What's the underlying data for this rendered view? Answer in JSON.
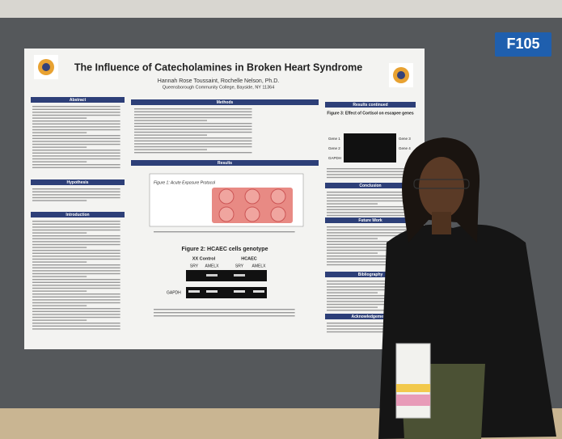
{
  "sign": "F105",
  "poster": {
    "title": "The Influence of Catecholamines in Broken Heart Syndrome",
    "authors": "Hannah Rose Toussaint, Rochelle Nelson, Ph.D.",
    "affiliation": "Queensborough Community College, Bayside, NY 11364",
    "sections": [
      "Abstract",
      "Hypothesis",
      "Introduction",
      "Methods",
      "Results",
      "Results continued",
      "Conclusion",
      "Future Work",
      "Bibliography",
      "Acknowledgements"
    ],
    "figure1": {
      "title": "Figure 1: Acute Exposure Protocol"
    },
    "figure2": {
      "title": "Figure 2: HCAEC cells genotype",
      "groups": [
        "XX Control",
        "HCAEC"
      ],
      "columns": [
        "SRY",
        "AMELX",
        "SRY",
        "AMELX"
      ],
      "row": "GAPDH"
    },
    "figure3": {
      "title": "Figure 3: Effect of Cortisol on escapee genes",
      "genes": [
        "Gene 1",
        "Gene 2",
        "Gene 3",
        "Gene 4"
      ],
      "row": "GAPDH"
    }
  }
}
